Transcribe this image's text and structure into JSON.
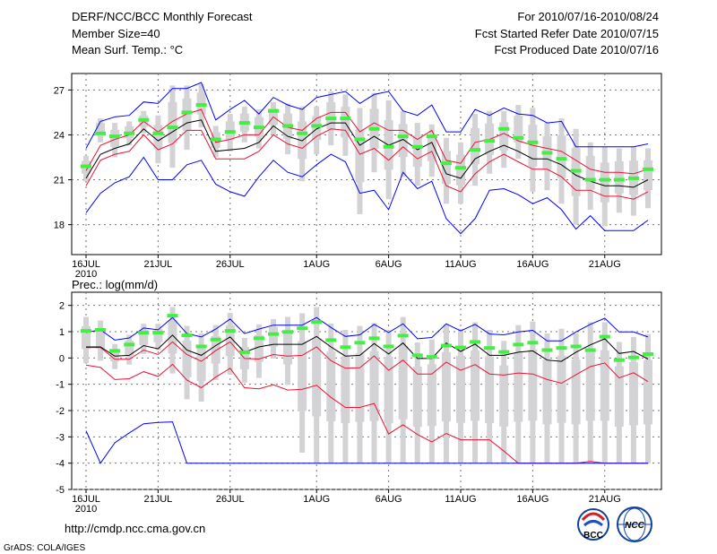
{
  "header": {
    "title": "DERF/NCC/BCC Monthly Forecast",
    "member_size": "Member Size=40",
    "variable": "Mean Surf. Temp.: °C",
    "period": "For 2010/07/16-2010/08/24",
    "start_date": "Fcst Started Refer Date 2010/07/15",
    "produced_date": "Fcst Produced Date 2010/07/16"
  },
  "footer": {
    "url": "http://cmdp.ncc.cma.gov.cn",
    "credit": "GrADS: COLA/IGES",
    "logo_left": "BCC",
    "logo_right": "NCC"
  },
  "colors": {
    "box": "#d3d3d6",
    "median": "#44ee44",
    "mean": "#000000",
    "pct": "#ee1133",
    "extreme": "#0000ff"
  },
  "chart_data": [
    {
      "type": "line",
      "title": "Mean Surf. Temp.: °C",
      "xlabel": "",
      "ylabel": "",
      "x_tick_labels": [
        "16JUL",
        "21JUL",
        "26JUL",
        "1AUG",
        "6AUG",
        "11AUG",
        "16AUG",
        "21AUG"
      ],
      "x_tick_days": [
        0,
        5,
        10,
        16,
        21,
        26,
        31,
        36
      ],
      "year_label": "2010",
      "y_ticks": [
        18,
        21,
        24,
        27
      ],
      "ylim": [
        16,
        28.1
      ],
      "grid": true,
      "days": 40,
      "series": [
        {
          "name": "max",
          "color": "extreme",
          "values": [
            23.1,
            24.9,
            25.2,
            25.3,
            26.2,
            26.1,
            27.1,
            27.1,
            27.5,
            25.0,
            25.7,
            26.3,
            25.4,
            26.5,
            26.0,
            25.7,
            26.5,
            26.7,
            26.9,
            26.1,
            26.7,
            26.9,
            25.6,
            25.3,
            26.0,
            24.2,
            24.2,
            25.7,
            25.3,
            25.8,
            25.4,
            25.3,
            24.8,
            24.9,
            23.2,
            23.2,
            23.2,
            23.2,
            23.2,
            23.4
          ]
        },
        {
          "name": "upper",
          "color": "pct",
          "values": [
            21.6,
            23.3,
            23.7,
            24.0,
            24.9,
            24.2,
            24.9,
            25.4,
            25.7,
            23.5,
            23.7,
            24.0,
            24.0,
            25.2,
            24.5,
            24.3,
            25.1,
            25.5,
            25.5,
            24.2,
            24.8,
            24.3,
            24.3,
            23.7,
            24.3,
            22.3,
            22.1,
            23.5,
            23.7,
            24.1,
            23.6,
            23.3,
            23.1,
            22.9,
            22.3,
            21.7,
            21.5,
            21.5,
            21.4,
            21.7
          ]
        },
        {
          "name": "mean",
          "color": "mean",
          "values": [
            21.1,
            22.7,
            23.1,
            23.4,
            24.4,
            23.6,
            24.2,
            24.8,
            25.0,
            22.9,
            23.0,
            23.1,
            23.5,
            24.6,
            23.9,
            23.6,
            24.4,
            24.8,
            24.8,
            23.3,
            23.9,
            23.3,
            23.7,
            23.0,
            23.5,
            21.4,
            21.1,
            22.4,
            22.9,
            23.3,
            22.9,
            22.4,
            22.4,
            22.0,
            21.3,
            20.9,
            20.6,
            20.6,
            20.5,
            21.0
          ]
        },
        {
          "name": "lower",
          "color": "pct",
          "values": [
            20.6,
            22.3,
            22.7,
            22.9,
            24.0,
            23.0,
            23.4,
            24.3,
            24.3,
            22.4,
            22.4,
            22.4,
            22.9,
            24.0,
            23.4,
            23.1,
            23.9,
            24.4,
            24.3,
            22.7,
            23.1,
            22.3,
            23.2,
            22.4,
            22.9,
            20.6,
            20.2,
            21.4,
            22.2,
            22.7,
            22.2,
            21.7,
            21.7,
            21.2,
            20.3,
            20.3,
            19.9,
            19.9,
            19.7,
            20.2
          ]
        },
        {
          "name": "min",
          "color": "extreme",
          "values": [
            18.8,
            20.1,
            20.8,
            21.2,
            22.5,
            21.0,
            21.0,
            22.0,
            22.3,
            20.7,
            20.2,
            19.9,
            21.2,
            22.3,
            21.5,
            21.2,
            22.0,
            22.7,
            22.2,
            20.1,
            20.3,
            19.0,
            21.5,
            20.4,
            20.9,
            18.4,
            17.4,
            18.4,
            20.3,
            20.4,
            20.0,
            19.4,
            19.8,
            19.0,
            17.7,
            18.6,
            17.6,
            17.6,
            17.6,
            18.3
          ]
        }
      ],
      "median": [
        21.9,
        24.1,
        23.9,
        24.1,
        25.0,
        24.1,
        24.5,
        25.5,
        26.0,
        23.7,
        24.2,
        24.8,
        24.5,
        25.6,
        24.6,
        24.1,
        24.6,
        25.1,
        25.1,
        23.7,
        24.4,
        23.2,
        23.9,
        23.2,
        23.9,
        22.1,
        21.8,
        23.0,
        23.6,
        24.4,
        23.8,
        23.5,
        22.8,
        22.4,
        21.6,
        21.0,
        21.0,
        21.0,
        21.1,
        21.7
      ],
      "spread_high": [
        22.6,
        25.1,
        24.8,
        24.9,
        25.6,
        25.3,
        27.3,
        27.3,
        27.4,
        24.6,
        25.4,
        25.9,
        25.7,
        26.2,
        26.1,
        25.9,
        25.9,
        26.9,
        26.7,
        25.8,
        26.8,
        26.3,
        25.6,
        24.8,
        24.7,
        23.8,
        23.5,
        25.4,
        25.6,
        25.6,
        26.0,
        25.8,
        24.8,
        25.1,
        24.4,
        23.5,
        23.2,
        23.1,
        23.2,
        23.1
      ],
      "spread_low": [
        20.9,
        23.5,
        22.5,
        23.3,
        24.1,
        22.1,
        21.8,
        23.0,
        24.5,
        22.5,
        22.9,
        23.5,
        23.1,
        24.0,
        22.7,
        20.9,
        22.7,
        23.3,
        22.6,
        18.7,
        21.5,
        19.7,
        21.2,
        20.6,
        21.2,
        19.4,
        19.4,
        20.6,
        21.4,
        21.8,
        22.4,
        20.2,
        20.3,
        19.4,
        18.0,
        19.0,
        17.9,
        18.8,
        18.6,
        19.1
      ]
    },
    {
      "type": "line",
      "title": "Prec.: log(mm/d)",
      "xlabel": "",
      "ylabel": "",
      "x_tick_labels": [
        "16JUL",
        "21JUL",
        "26JUL",
        "1AUG",
        "6AUG",
        "11AUG",
        "16AUG",
        "21AUG"
      ],
      "x_tick_days": [
        0,
        5,
        10,
        16,
        21,
        26,
        31,
        36
      ],
      "year_label": "2010",
      "y_ticks": [
        -5,
        -4,
        -3,
        -2,
        -1,
        0,
        1,
        2
      ],
      "ylim": [
        -5,
        2.5
      ],
      "grid": true,
      "days": 40,
      "series": [
        {
          "name": "max",
          "color": "extreme",
          "values": [
            0.97,
            1.07,
            0.68,
            0.76,
            1.14,
            1.07,
            1.54,
            0.93,
            0.8,
            1.1,
            1.48,
            0.93,
            1.1,
            1.25,
            1.25,
            1.25,
            1.54,
            1.16,
            0.82,
            0.88,
            1.28,
            0.97,
            1.3,
            0.73,
            0.78,
            1.3,
            1.03,
            1.28,
            0.91,
            0.88,
            0.99,
            1.05,
            0.65,
            0.65,
            0.99,
            1.28,
            1.51,
            0.99,
            0.99,
            0.8
          ]
        },
        {
          "name": "upper",
          "color": "pct",
          "values": [
            0.4,
            0.4,
            -0.05,
            -0.05,
            0.3,
            0.13,
            0.61,
            0.13,
            -0.13,
            0.28,
            0.61,
            -0.02,
            -0.04,
            0.13,
            0.07,
            0.1,
            0.42,
            -0.1,
            -0.39,
            -0.37,
            0.08,
            -0.47,
            -0.08,
            -0.61,
            -0.61,
            -0.16,
            -0.47,
            -0.25,
            -0.61,
            -0.65,
            -0.57,
            -0.61,
            -0.82,
            -0.96,
            -0.64,
            -0.33,
            -0.19,
            -0.76,
            -0.56,
            -0.9
          ]
        },
        {
          "name": "mean",
          "color": "mean",
          "values": [
            0.42,
            0.42,
            0.07,
            0.1,
            0.47,
            0.35,
            0.87,
            0.3,
            0.1,
            0.47,
            0.8,
            0.22,
            0.42,
            0.52,
            0.52,
            0.52,
            0.82,
            0.42,
            0.07,
            0.1,
            0.55,
            0.15,
            0.57,
            -0.02,
            -0.02,
            0.57,
            0.25,
            0.53,
            0.1,
            0.1,
            0.22,
            0.27,
            -0.08,
            -0.13,
            0.22,
            0.5,
            0.73,
            0.17,
            0.25,
            -0.04
          ]
        },
        {
          "name": "lower",
          "color": "pct",
          "values": [
            -0.27,
            -0.36,
            -0.82,
            -0.79,
            -0.52,
            -0.7,
            -0.24,
            -0.84,
            -1.13,
            -0.73,
            -0.39,
            -1.13,
            -1.17,
            -1.02,
            -1.22,
            -1.19,
            -1.04,
            -1.5,
            -1.88,
            -1.88,
            -1.73,
            -2.89,
            -2.54,
            -2.91,
            -3.19,
            -2.87,
            -3.11,
            -3.11,
            -3.11,
            -3.54,
            -4,
            -4,
            -4,
            -4,
            -4,
            -3.93,
            -4,
            -4,
            -4,
            -4
          ]
        },
        {
          "name": "min",
          "color": "extreme",
          "values": [
            -2.77,
            -4,
            -3.22,
            -2.85,
            -2.5,
            -2.45,
            -2.43,
            -4,
            -4,
            -4,
            -4,
            -4,
            -4,
            -4,
            -4,
            -4,
            -4,
            -4,
            -4,
            -4,
            -4,
            -4,
            -4,
            -4,
            -4,
            -4,
            -4,
            -4,
            -4,
            -4,
            -4,
            -4,
            -4,
            -4,
            -4,
            -4,
            -4,
            -4,
            -4,
            -4
          ]
        }
      ],
      "median": [
        1.03,
        1.07,
        0.27,
        0.51,
        0.96,
        0.96,
        1.61,
        0.86,
        0.44,
        0.7,
        1.03,
        0.22,
        0.75,
        0.91,
        0.99,
        1.13,
        1.37,
        0.68,
        0.41,
        0.58,
        0.75,
        0.44,
        0.85,
        0.1,
        0.04,
        0.47,
        0.4,
        0.61,
        0.38,
        0.23,
        0.51,
        0.58,
        0.3,
        0.38,
        0.44,
        0.3,
        0.81,
        -0.08,
        0.02,
        0.15
      ],
      "spread_high": [
        1.56,
        1.42,
        0.53,
        0.88,
        1.3,
        1.3,
        1.94,
        1.22,
        0.93,
        1.25,
        1.71,
        0.76,
        1.28,
        1.48,
        1.56,
        1.7,
        1.94,
        1.31,
        1.07,
        1.22,
        1.33,
        1.05,
        1.56,
        0.59,
        0.7,
        1.28,
        1.11,
        1.36,
        1.07,
        0.65,
        1.25,
        1.39,
        0.93,
        1.11,
        0.93,
        1.36,
        1.36,
        0.61,
        0.8,
        0.91
      ],
      "spread_low": [
        -0.19,
        -0.1,
        -0.42,
        -0.25,
        0.15,
        0.3,
        -0.59,
        -1.57,
        -1.66,
        -0.84,
        -0.63,
        -0.94,
        -0.76,
        -0.02,
        -1.02,
        -3.6,
        -4,
        -4,
        -4,
        -4,
        -4,
        -4,
        -4,
        -4,
        -4,
        -4,
        -4,
        -4,
        -4,
        -4,
        -4,
        -4,
        -4,
        -4,
        -4,
        -4,
        -4,
        -4,
        -4,
        -4
      ]
    }
  ]
}
